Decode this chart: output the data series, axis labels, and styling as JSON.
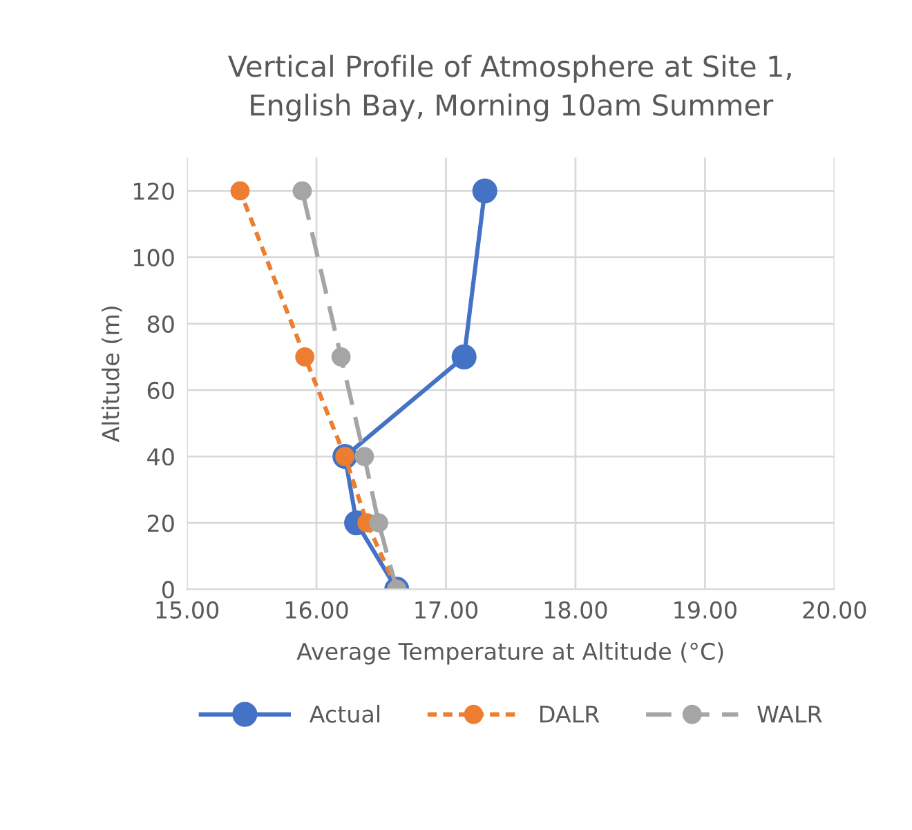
{
  "chart_data": {
    "type": "line",
    "title": "Vertical Profile of Atmosphere at Site 1,\nEnglish Bay, Morning 10am Summer",
    "xlabel": "Average Temperature at Altitude (°C)",
    "ylabel": "Altitude (m)",
    "xlim": [
      15,
      20
    ],
    "xticks": [
      {
        "value": 15,
        "label": "15.00"
      },
      {
        "value": 16,
        "label": "16.00"
      },
      {
        "value": 17,
        "label": "17.00"
      },
      {
        "value": 18,
        "label": "18.00"
      },
      {
        "value": 19,
        "label": "19.00"
      },
      {
        "value": 20,
        "label": "20.00"
      }
    ],
    "ylim": [
      0,
      130
    ],
    "yticks": [
      0,
      20,
      40,
      60,
      80,
      100,
      120
    ],
    "grid": true,
    "legend": "bottom",
    "marker": "circle",
    "series": [
      {
        "name": "Actual",
        "color": "#4472c4",
        "line_style": "solid",
        "x": [
          16.62,
          16.31,
          16.22,
          17.14,
          17.3
        ],
        "values": [
          0,
          20,
          40,
          70,
          120
        ]
      },
      {
        "name": "DALR",
        "color": "#ed7d31",
        "line_style": "dotted",
        "x": [
          16.62,
          16.39,
          16.22,
          15.91,
          15.41
        ],
        "values": [
          0,
          20,
          40,
          70,
          120
        ]
      },
      {
        "name": "WALR",
        "color": "#a5a5a5",
        "line_style": "dashed",
        "x": [
          16.62,
          16.48,
          16.37,
          16.19,
          15.89
        ],
        "values": [
          0,
          20,
          40,
          70,
          120
        ]
      }
    ]
  }
}
